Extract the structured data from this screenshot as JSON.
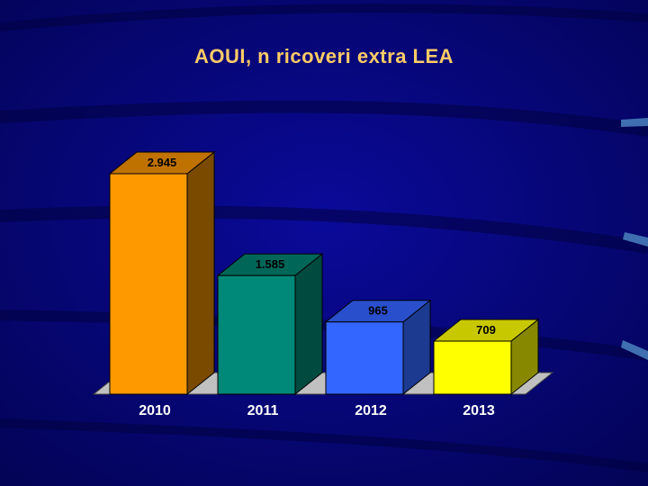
{
  "chart_data": {
    "type": "bar",
    "title": "AOUI, n ricoveri extra LEA",
    "categories": [
      "2010",
      "2011",
      "2012",
      "2013"
    ],
    "values": [
      2945,
      1585,
      965,
      709
    ],
    "value_labels": [
      "2.945",
      "1.585",
      "965",
      "709"
    ],
    "ylim": [
      0,
      2945
    ],
    "grid": false,
    "legend": "none",
    "colors": {
      "front": [
        "#ff9900",
        "#008878",
        "#3366ff",
        "#ffff00"
      ],
      "side": [
        "#7a4a00",
        "#004a40",
        "#1c3a90",
        "#888800"
      ],
      "top": [
        "#c07200",
        "#006658",
        "#2a4fcc",
        "#c8c800"
      ]
    }
  },
  "colors": {
    "background": "#08087a",
    "title": "#ffcc66",
    "axis_label": "#ffffff",
    "value_label": "#000000",
    "floor": "#c0c0c0"
  }
}
